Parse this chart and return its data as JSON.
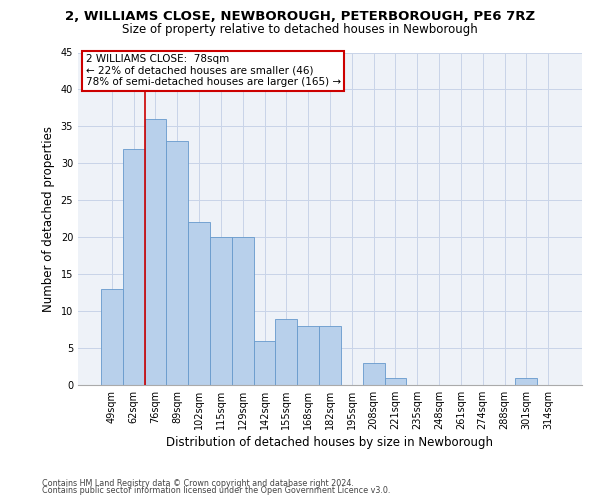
{
  "title_line1": "2, WILLIAMS CLOSE, NEWBOROUGH, PETERBOROUGH, PE6 7RZ",
  "title_line2": "Size of property relative to detached houses in Newborough",
  "xlabel": "Distribution of detached houses by size in Newborough",
  "ylabel": "Number of detached properties",
  "categories": [
    "49sqm",
    "62sqm",
    "76sqm",
    "89sqm",
    "102sqm",
    "115sqm",
    "129sqm",
    "142sqm",
    "155sqm",
    "168sqm",
    "182sqm",
    "195sqm",
    "208sqm",
    "221sqm",
    "235sqm",
    "248sqm",
    "261sqm",
    "274sqm",
    "288sqm",
    "301sqm",
    "314sqm"
  ],
  "values": [
    13,
    32,
    36,
    33,
    22,
    20,
    20,
    6,
    9,
    8,
    8,
    0,
    3,
    1,
    0,
    0,
    0,
    0,
    0,
    1,
    0
  ],
  "bar_color": "#b8d0eb",
  "bar_edge_color": "#6699cc",
  "subject_bar_idx": 2,
  "annotation_text_line1": "2 WILLIAMS CLOSE:  78sqm",
  "annotation_text_line2": "← 22% of detached houses are smaller (46)",
  "annotation_text_line3": "78% of semi-detached houses are larger (165) →",
  "annotation_box_color": "#cc0000",
  "red_line_color": "#cc0000",
  "ylim": [
    0,
    45
  ],
  "yticks": [
    0,
    5,
    10,
    15,
    20,
    25,
    30,
    35,
    40,
    45
  ],
  "grid_color": "#c8d4e8",
  "background_color": "#eef2f8",
  "footer_line1": "Contains HM Land Registry data © Crown copyright and database right 2024.",
  "footer_line2": "Contains public sector information licensed under the Open Government Licence v3.0.",
  "title_fontsize": 9.5,
  "subtitle_fontsize": 8.5,
  "tick_fontsize": 7,
  "ylabel_fontsize": 8.5,
  "xlabel_fontsize": 8.5,
  "annotation_fontsize": 7.5,
  "footer_fontsize": 5.8
}
